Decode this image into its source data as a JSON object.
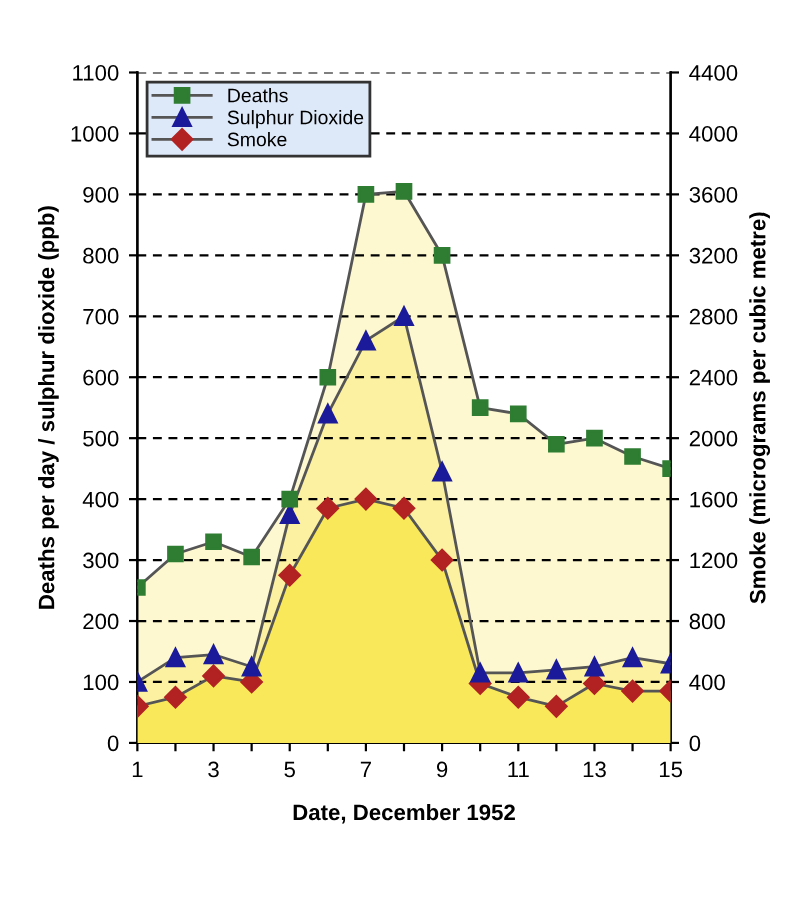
{
  "chart_data": {
    "type": "area",
    "xlabel": "Date, December 1952",
    "ylabel": "Deaths per day / sulphur dioxide (ppb)",
    "y2label": "Smoke (micrograms per cubic metre)",
    "x": [
      1,
      2,
      3,
      4,
      5,
      6,
      7,
      8,
      9,
      10,
      11,
      12,
      13,
      14,
      15
    ],
    "series": [
      {
        "name": "Deaths",
        "color": "#2e7d32",
        "marker": "square",
        "values": [
          255,
          310,
          330,
          305,
          400,
          600,
          900,
          905,
          800,
          550,
          540,
          490,
          500,
          470,
          450
        ]
      },
      {
        "name": "Sulphur Dioxide",
        "color": "#1a1a9a",
        "marker": "triangle",
        "values": [
          100,
          140,
          145,
          125,
          375,
          540,
          660,
          700,
          445,
          115,
          115,
          120,
          125,
          140,
          130
        ]
      },
      {
        "name": "Smoke",
        "color": "#b22222",
        "marker": "diamond",
        "axis": "y2",
        "values": [
          240,
          300,
          440,
          400,
          1100,
          1540,
          1600,
          1540,
          1200,
          390,
          300,
          240,
          390,
          340,
          340
        ]
      }
    ],
    "xlim": [
      1,
      15
    ],
    "xticks": [
      1,
      {
        "value": 2,
        "label": null
      },
      3,
      {
        "value": 4,
        "label": null
      },
      5,
      {
        "value": 6,
        "label": null
      },
      7,
      {
        "value": 8,
        "label": null
      },
      9,
      {
        "value": 10,
        "label": null
      },
      11,
      {
        "value": 12,
        "label": null
      },
      13,
      {
        "value": 14,
        "label": null
      },
      15
    ],
    "ylim": [
      0,
      1100
    ],
    "yticks": [
      0,
      100,
      200,
      300,
      400,
      500,
      600,
      700,
      800,
      900,
      1000,
      1100
    ],
    "y2lim": [
      0,
      4400
    ],
    "y2ticks": [
      0,
      400,
      800,
      1200,
      1600,
      2000,
      2400,
      2800,
      3200,
      3600,
      4000,
      4400
    ],
    "grid": "y",
    "legend": "top left",
    "line_style": "solid"
  }
}
